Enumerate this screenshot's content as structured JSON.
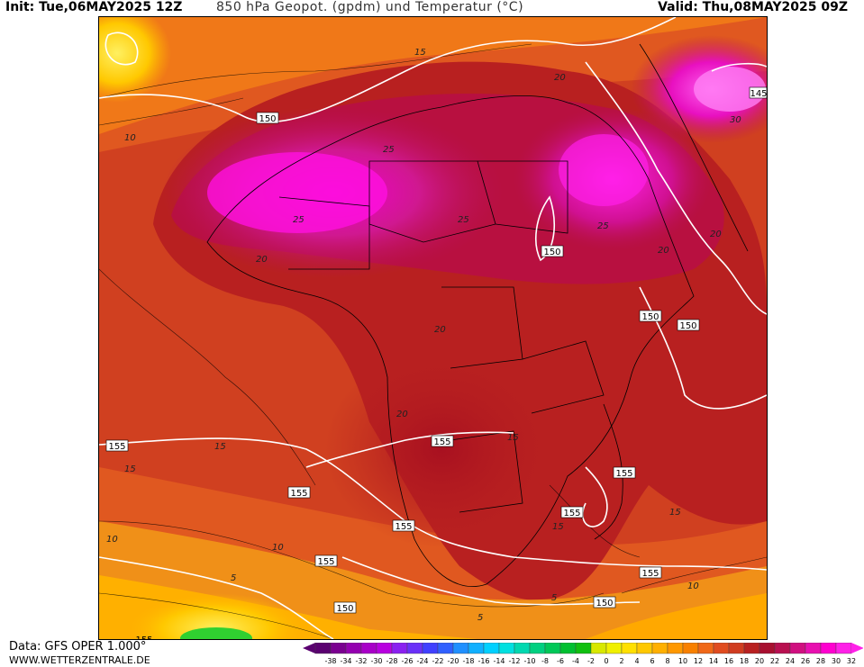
{
  "header": {
    "init": "Init: Tue,06MAY2025 12Z",
    "title": "850 hPa Geopot. (gpdm) und Temperatur (°C)",
    "valid": "Valid: Thu,08MAY2025 09Z"
  },
  "footer": {
    "data_source": "Data: GFS OPER 1.000°",
    "website": "WWW.WETTERZENTRALE.DE"
  },
  "legend": {
    "ticks": [
      "-38",
      "-34",
      "-32",
      "-30",
      "-28",
      "-26",
      "-24",
      "-22",
      "-20",
      "-18",
      "-16",
      "-14",
      "-12",
      "-10",
      "-8",
      "-6",
      "-4",
      "-2",
      "0",
      "2",
      "4",
      "6",
      "8",
      "10",
      "12",
      "14",
      "16",
      "18",
      "20",
      "22",
      "24",
      "26",
      "28",
      "30",
      "32"
    ],
    "colors": [
      "#5a0070",
      "#7a0090",
      "#9400b0",
      "#a800c8",
      "#b800e0",
      "#8a20f0",
      "#6a30f8",
      "#4040ff",
      "#3060ff",
      "#2090ff",
      "#10b0ff",
      "#00d0ff",
      "#00e0e0",
      "#00d8b0",
      "#00d080",
      "#00c858",
      "#00c030",
      "#10c010",
      "#d8e800",
      "#f0f000",
      "#ffe000",
      "#ffc800",
      "#ffb000",
      "#ff9800",
      "#f88000",
      "#f06818",
      "#e04c20",
      "#d03c20",
      "#b82020",
      "#a81030",
      "#b81050",
      "#d01080",
      "#e810b0",
      "#ff00d0",
      "#ff20e8"
    ]
  },
  "map": {
    "geopotential_labels": [
      "150",
      "150",
      "150",
      "150",
      "150",
      "145",
      "155",
      "155",
      "155",
      "155",
      "155",
      "155",
      "155",
      "155",
      "150",
      "155"
    ],
    "temperature_labels": [
      "15",
      "10",
      "20",
      "25",
      "25",
      "25",
      "20",
      "20",
      "25",
      "30",
      "20",
      "20",
      "20",
      "15",
      "15",
      "15",
      "15",
      "10",
      "10",
      "5",
      "5",
      "15",
      "10",
      "5"
    ]
  }
}
